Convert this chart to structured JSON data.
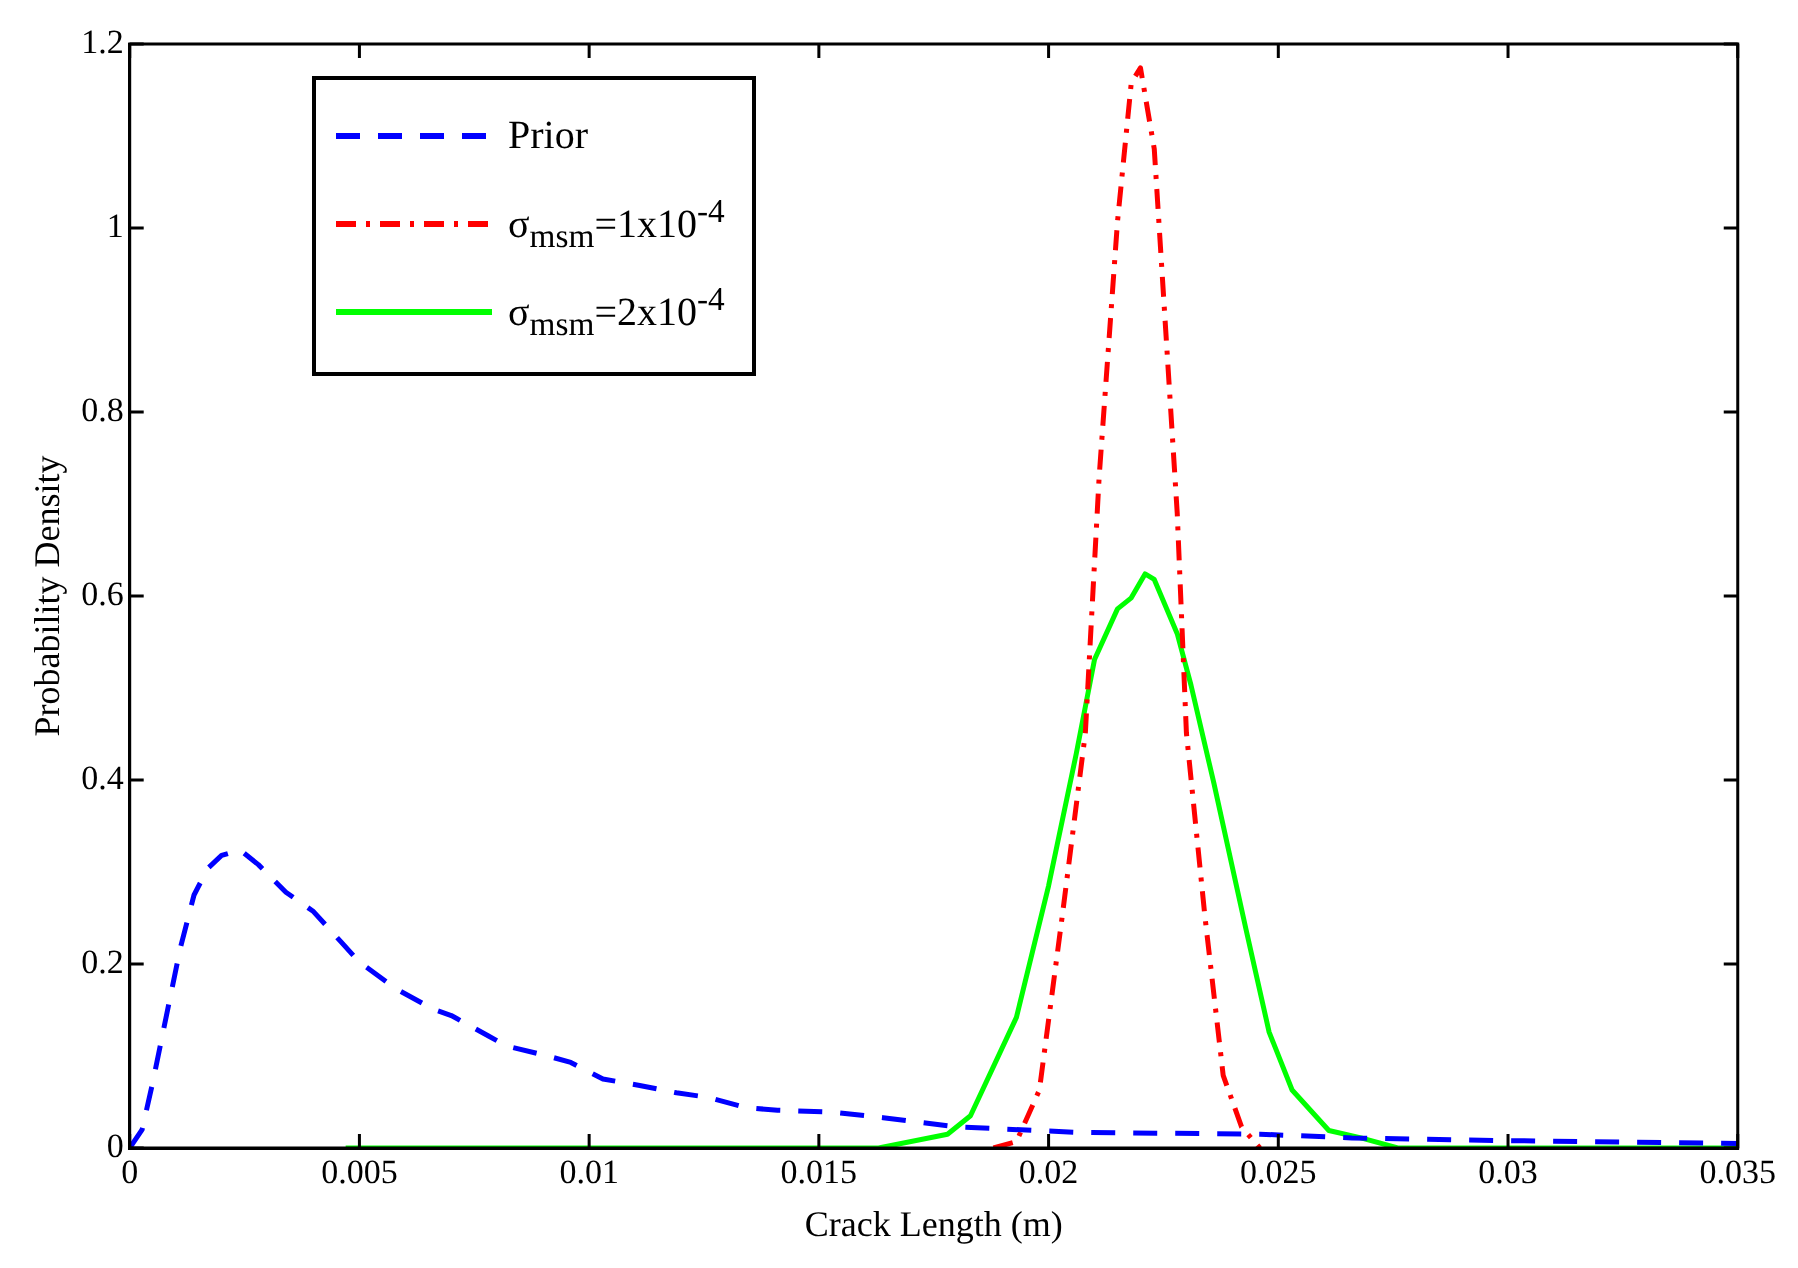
{
  "chart_data": {
    "type": "line",
    "xlabel": "Crack Length (m)",
    "ylabel": "Probability Density",
    "xlim": [
      0,
      0.035
    ],
    "xticks": [
      0,
      0.005,
      0.01,
      0.015,
      0.02,
      0.025,
      0.03,
      0.035
    ],
    "ylim": [
      0,
      1.2
    ],
    "yticks": [
      0,
      0.2,
      0.4,
      0.6,
      0.8,
      1,
      1.2
    ],
    "grid": false,
    "legend": "top left",
    "marker": "none",
    "series": [
      {
        "name": "Prior",
        "color": "#0000ff",
        "line_style": "dashed",
        "x": [
          0,
          0.00027,
          0.0005,
          0.0008,
          0.0011,
          0.0014,
          0.0017,
          0.002,
          0.0024,
          0.0028,
          0.0034,
          0.004,
          0.0046,
          0.005,
          0.0058,
          0.0066,
          0.007,
          0.0078,
          0.0082,
          0.0091,
          0.0096,
          0.0103,
          0.0111,
          0.0119,
          0.0126,
          0.0134,
          0.0141,
          0.0153,
          0.0164,
          0.018,
          0.0206,
          0.0246,
          0.0266,
          0.03,
          0.035
        ],
        "values": [
          0,
          0.02,
          0.071,
          0.144,
          0.217,
          0.275,
          0.304,
          0.318,
          0.324,
          0.308,
          0.278,
          0.257,
          0.224,
          0.202,
          0.173,
          0.151,
          0.144,
          0.122,
          0.111,
          0.1,
          0.093,
          0.075,
          0.068,
          0.06,
          0.055,
          0.044,
          0.041,
          0.039,
          0.033,
          0.023,
          0.017,
          0.015,
          0.011,
          0.008,
          0.005
        ]
      },
      {
        "name": "σ$_{msm}$=1x10$^{-4}$",
        "color": "#ff0000",
        "line_style": "dashdot",
        "x": [
          0.0188,
          0.0193,
          0.0198,
          0.0203,
          0.0208,
          0.0211,
          0.0215,
          0.0218,
          0.022,
          0.0223,
          0.0225,
          0.0228,
          0.023,
          0.0234,
          0.0238,
          0.0242,
          0.0246
        ],
        "values": [
          0,
          0.007,
          0.063,
          0.253,
          0.451,
          0.729,
          1.007,
          1.158,
          1.174,
          1.086,
          0.928,
          0.69,
          0.451,
          0.253,
          0.079,
          0.023,
          0
        ]
      },
      {
        "name": "σ$_{msm}$=2x10$^{-4}$",
        "color": "#00ff00",
        "line_style": "solid",
        "x": [
          0.0047,
          0.0163,
          0.0178,
          0.0183,
          0.0193,
          0.02,
          0.0206,
          0.021,
          0.0215,
          0.0218,
          0.0221,
          0.0223,
          0.0228,
          0.0231,
          0.0236,
          0.0243,
          0.0248,
          0.0253,
          0.0261,
          0.0268,
          0.0276,
          0.035
        ],
        "values": [
          0,
          0,
          0.015,
          0.035,
          0.142,
          0.285,
          0.428,
          0.531,
          0.586,
          0.598,
          0.624,
          0.618,
          0.559,
          0.503,
          0.396,
          0.237,
          0.126,
          0.063,
          0.019,
          0.011,
          0,
          0
        ]
      }
    ]
  }
}
